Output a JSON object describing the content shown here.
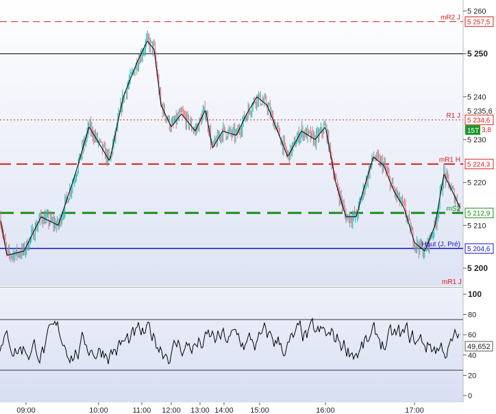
{
  "colors": {
    "bg_top": "#ffffff",
    "bg_bottom": "#dde3f4",
    "up_candle": "#1fbcb4",
    "down_candle": "#e0707a",
    "ma_line": "#000000",
    "red_level": "#d81b1b",
    "green_level": "#1a8a1a",
    "blue_level": "#1010c0",
    "osc_line": "#000000"
  },
  "price_axis": {
    "labels": [
      {
        "text": "5 260",
        "value": 5260,
        "bold": false
      },
      {
        "text": "5 250",
        "value": 5250,
        "bold": true
      },
      {
        "text": "5 240",
        "value": 5240,
        "bold": false
      },
      {
        "text": "5 230",
        "value": 5230,
        "bold": false
      },
      {
        "text": "5 220",
        "value": 5220,
        "bold": false
      },
      {
        "text": "5 210",
        "value": 5210,
        "bold": false
      },
      {
        "text": "5 200",
        "value": 5200,
        "bold": true
      }
    ],
    "last_price_label": "15T",
    "last_price_change": "3,8",
    "partial_label": "5 235,6"
  },
  "levels": [
    {
      "id": "mR2-J",
      "name": "mR2 J",
      "value_text": "5 257,5",
      "value": 5257.5,
      "style": "dashed-thin",
      "color": "#d81b1b"
    },
    {
      "id": "black",
      "name": "",
      "value_text": "",
      "value": 5250,
      "style": "solid",
      "color": "#000000"
    },
    {
      "id": "R1-J",
      "name": "R1 J",
      "value_text": "5 234,6",
      "value": 5234.6,
      "style": "dotted",
      "color": "#d81b1b"
    },
    {
      "id": "mR1-H",
      "name": "mR1 H",
      "value_text": "5 224,3",
      "value": 5224.3,
      "style": "dashed-thick",
      "color": "#d81b1b"
    },
    {
      "id": "mS2",
      "name": "mS2",
      "value_text": "5 212,9",
      "value": 5212.9,
      "style": "dashed-green",
      "color": "#1a8a1a"
    },
    {
      "id": "haut",
      "name": "Haut (J, Pré)",
      "value_text": "5 204,6",
      "value": 5204.6,
      "style": "solid-blue",
      "color": "#1010c0"
    }
  ],
  "bottom_price_label": "mR1 J",
  "time_axis": {
    "labels": [
      {
        "text": "09:00"
      },
      {
        "text": "10:00"
      },
      {
        "text": "11:00"
      },
      {
        "text": "12:00"
      },
      {
        "text": "13:00"
      },
      {
        "text": "14:00"
      },
      {
        "text": "15:00"
      },
      {
        "text": "16:00"
      },
      {
        "text": "17:00"
      }
    ]
  },
  "oscillator": {
    "axis_labels": [
      "100",
      "80",
      "60",
      "40",
      "20",
      "0"
    ],
    "current_value": "49,652",
    "upper_band": 75,
    "lower_band": 25
  }
}
